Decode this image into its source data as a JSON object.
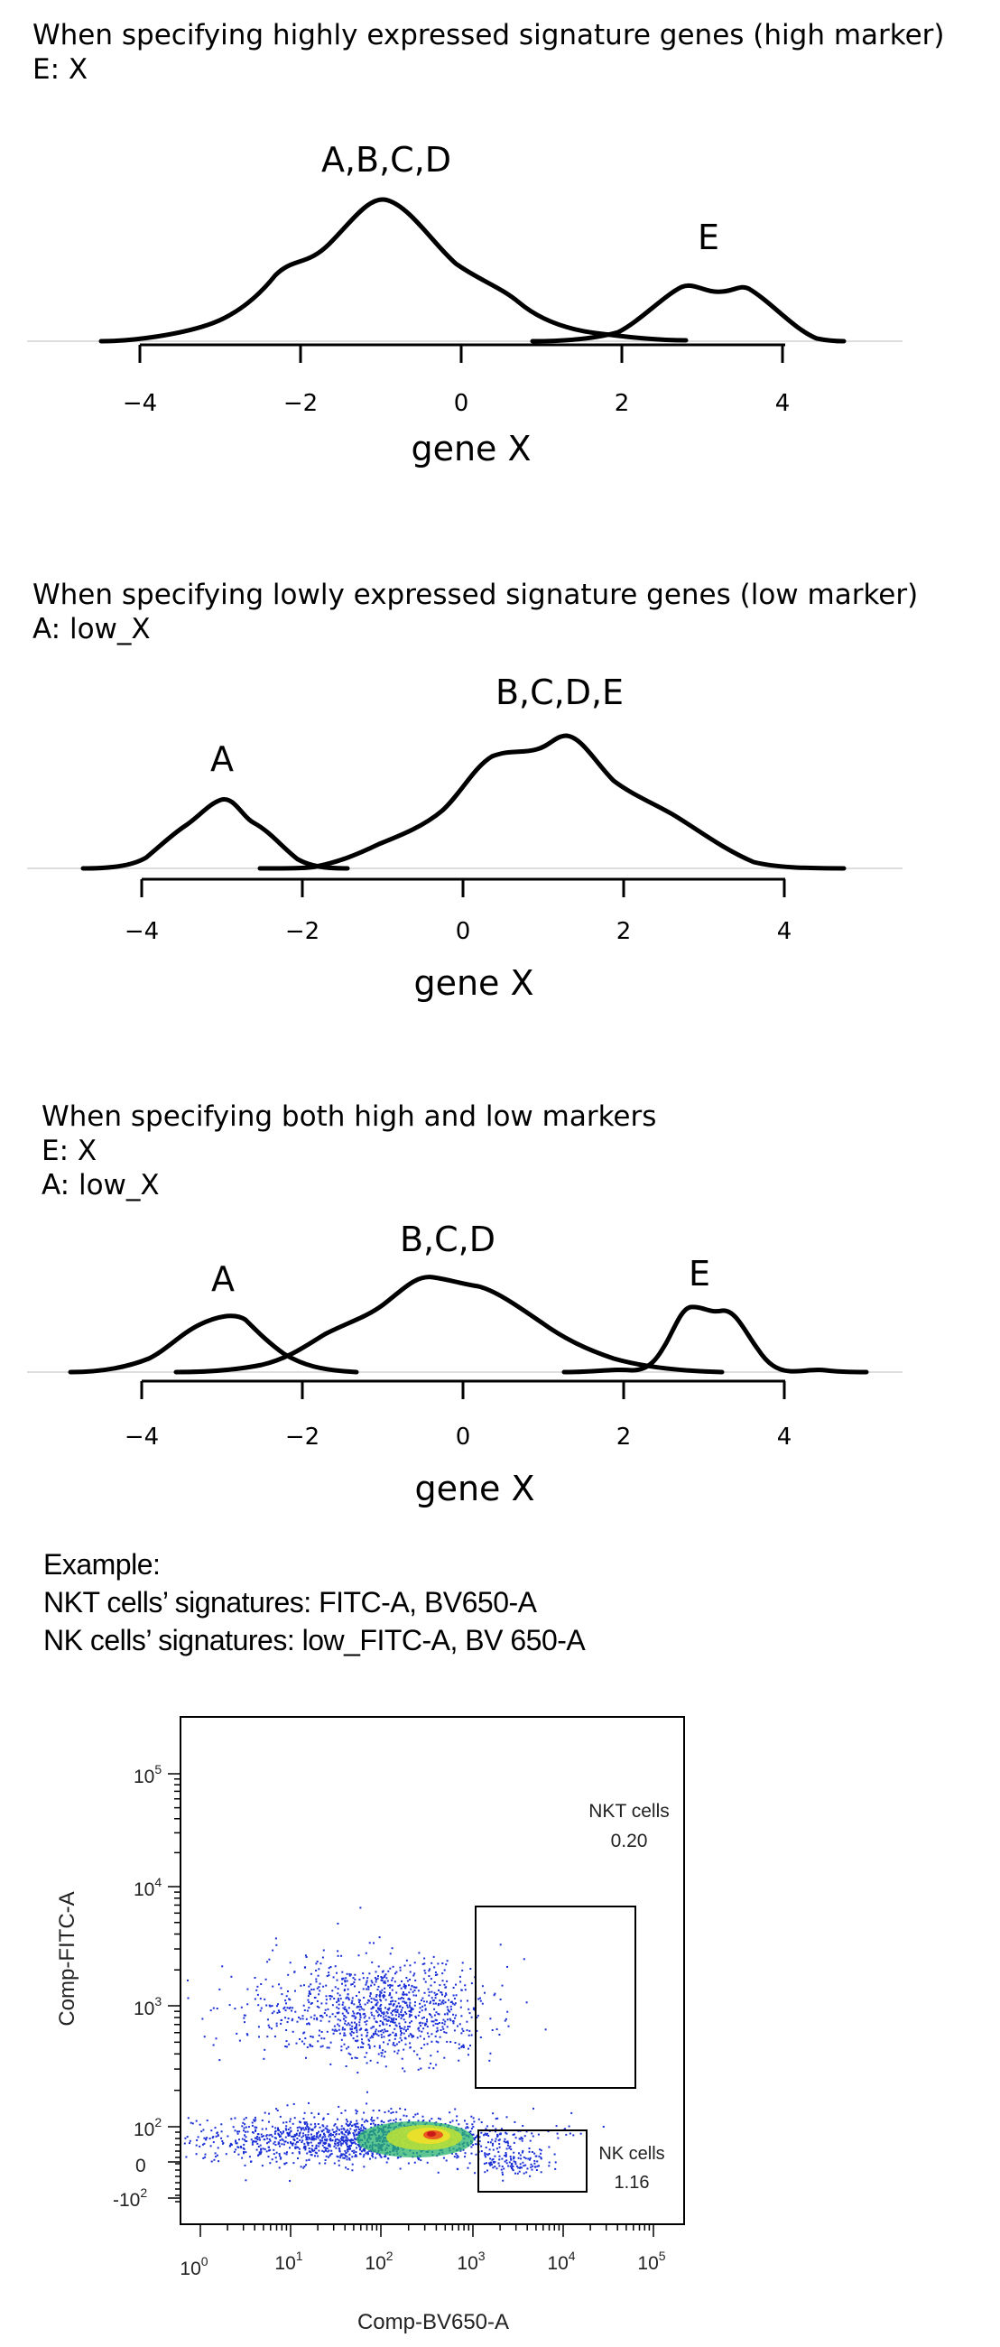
{
  "panels": [
    {
      "caption_lines": [
        "When specifying highly expressed signature genes (high marker)",
        "E: X"
      ],
      "peak_labels": [
        "A,B,C,D",
        "E"
      ],
      "xlabel": "gene X",
      "ticks": [
        "−4",
        "−2",
        "0",
        "2",
        "4"
      ]
    },
    {
      "caption_lines": [
        "When specifying lowly expressed signature genes (low marker)",
        "A: low_X"
      ],
      "peak_labels": [
        "A",
        "B,C,D,E"
      ],
      "xlabel": "gene X",
      "ticks": [
        "−4",
        "−2",
        "0",
        "2",
        "4"
      ]
    },
    {
      "caption_lines": [
        "When specifying both high and low markers",
        "E: X",
        "A: low_X"
      ],
      "peak_labels": [
        "A",
        "B,C,D",
        "E"
      ],
      "xlabel": "gene X",
      "ticks": [
        "−4",
        "−2",
        "0",
        "2",
        "4"
      ]
    }
  ],
  "example": {
    "lines": [
      "Example:",
      "NKT cells’ signatures: FITC-A, BV650-A",
      "NK cells’ signatures: low_FITC-A, BV 650-A"
    ]
  },
  "facs": {
    "xlabel": "Comp-BV650-A",
    "ylabel": "Comp-FITC-A",
    "x_ticks": [
      {
        "base": "10",
        "exp": "0"
      },
      {
        "base": "10",
        "exp": "1"
      },
      {
        "base": "10",
        "exp": "2"
      },
      {
        "base": "10",
        "exp": "3"
      },
      {
        "base": "10",
        "exp": "4"
      },
      {
        "base": "10",
        "exp": "5"
      }
    ],
    "y_ticks": [
      {
        "base": "10",
        "exp": "5"
      },
      {
        "base": "10",
        "exp": "4"
      },
      {
        "base": "10",
        "exp": "3"
      },
      {
        "base": "10",
        "exp": "2"
      },
      {
        "base": "0",
        "exp": ""
      },
      {
        "base": "-10",
        "exp": "2"
      }
    ],
    "gates": [
      {
        "name": "NKT cells",
        "value": "0.20"
      },
      {
        "name": "NK cells",
        "value": "1.16"
      }
    ],
    "colors": {
      "dots": "#1a2fd6",
      "density_mid": "#27b36b",
      "density_high": "#e8e02a",
      "density_peak": "#e02020"
    }
  }
}
